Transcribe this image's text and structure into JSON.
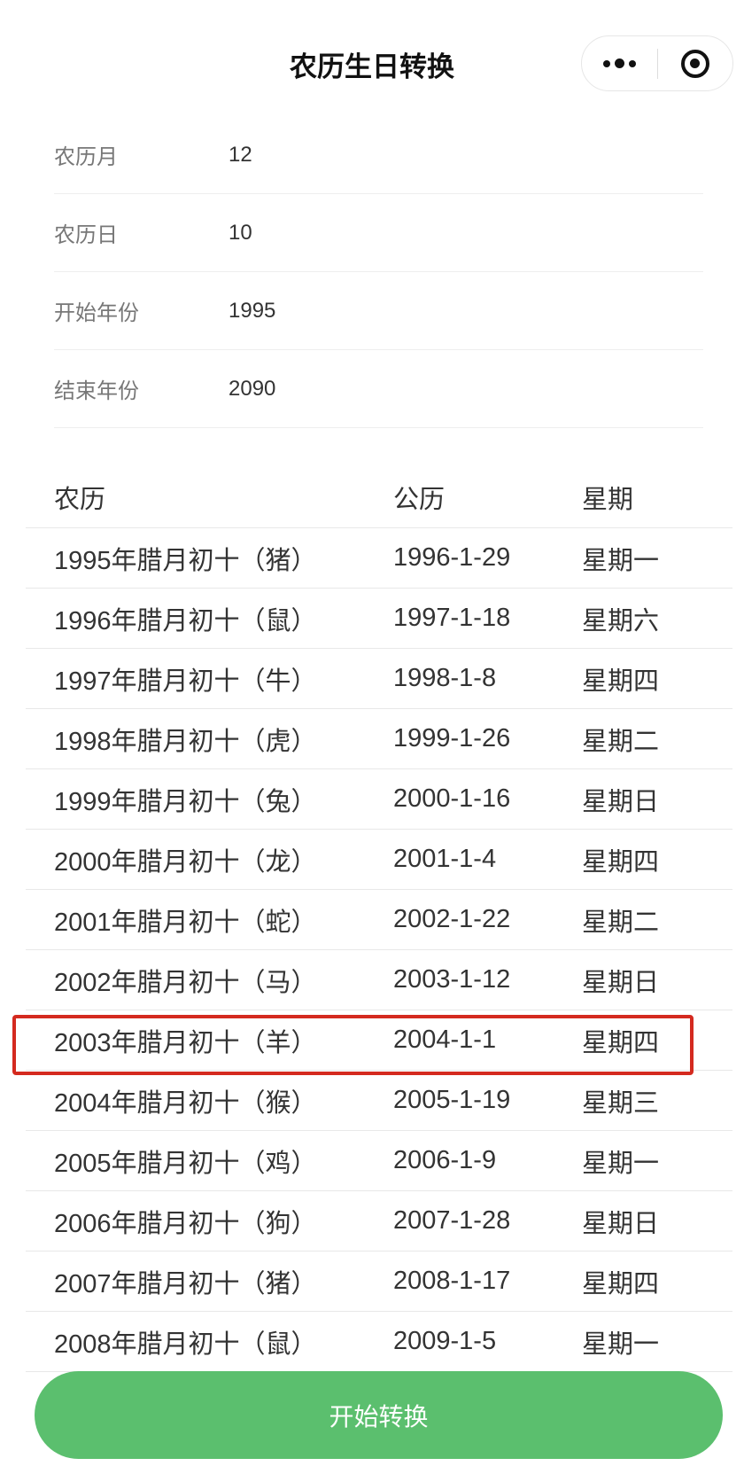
{
  "header": {
    "title": "农历生日转换",
    "more_icon": "more-dots-icon",
    "close_icon": "target-circle-icon"
  },
  "form": [
    {
      "label": "农历月",
      "value": "12"
    },
    {
      "label": "农历日",
      "value": "10"
    },
    {
      "label": "开始年份",
      "value": "1995"
    },
    {
      "label": "结束年份",
      "value": "2090"
    }
  ],
  "table": {
    "headers": [
      "农历",
      "公历",
      "星期"
    ],
    "rows": [
      [
        "1995年腊月初十（猪）",
        "1996-1-29",
        "星期一"
      ],
      [
        "1996年腊月初十（鼠）",
        "1997-1-18",
        "星期六"
      ],
      [
        "1997年腊月初十（牛）",
        "1998-1-8",
        "星期四"
      ],
      [
        "1998年腊月初十（虎）",
        "1999-1-26",
        "星期二"
      ],
      [
        "1999年腊月初十（兔）",
        "2000-1-16",
        "星期日"
      ],
      [
        "2000年腊月初十（龙）",
        "2001-1-4",
        "星期四"
      ],
      [
        "2001年腊月初十（蛇）",
        "2002-1-22",
        "星期二"
      ],
      [
        "2002年腊月初十（马）",
        "2003-1-12",
        "星期日"
      ],
      [
        "2003年腊月初十（羊）",
        "2004-1-1",
        "星期四"
      ],
      [
        "2004年腊月初十（猴）",
        "2005-1-19",
        "星期三"
      ],
      [
        "2005年腊月初十（鸡）",
        "2006-1-9",
        "星期一"
      ],
      [
        "2006年腊月初十（狗）",
        "2007-1-28",
        "星期日"
      ],
      [
        "2007年腊月初十（猪）",
        "2008-1-17",
        "星期四"
      ],
      [
        "2008年腊月初十（鼠）",
        "2009-1-5",
        "星期一"
      ]
    ],
    "highlighted_row": 8,
    "highlight_color": "#d42a1f"
  },
  "button": {
    "label": "开始转换",
    "color": "#5bbf6e"
  }
}
